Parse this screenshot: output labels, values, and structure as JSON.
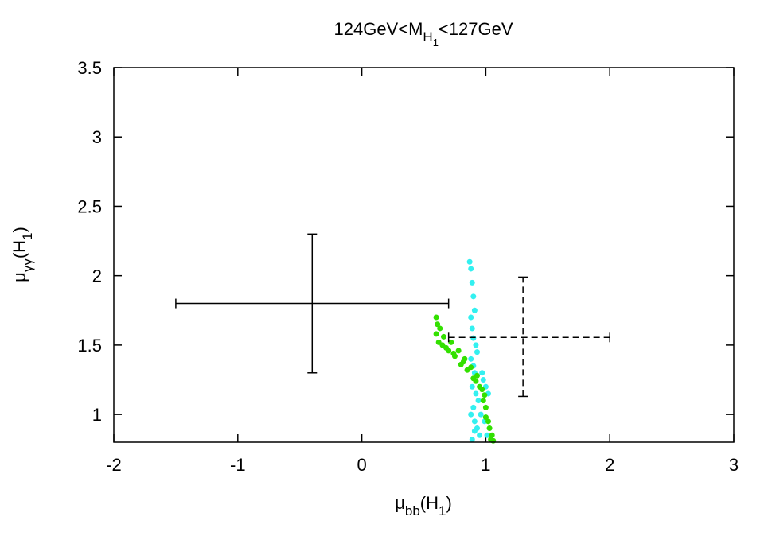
{
  "chart_data": {
    "type": "scatter",
    "title": [
      "124GeV<M",
      "H",
      "1",
      "<127GeV"
    ],
    "x_label": [
      "μ",
      "bb",
      "(H",
      "1",
      ")"
    ],
    "y_label": [
      "μ",
      "γγ",
      "(H",
      "1",
      ")"
    ],
    "xlim": [
      -2,
      3
    ],
    "ylim": [
      0.8,
      3.5
    ],
    "xticks": [
      -2,
      -1,
      0,
      1,
      2,
      3
    ],
    "yticks": [
      1,
      1.5,
      2,
      2.5,
      3,
      3.5
    ],
    "series": [
      {
        "color": "#33f0f0",
        "x": [
          0.87,
          0.88,
          0.89,
          0.9,
          0.91,
          0.88,
          0.89,
          0.9,
          0.92,
          0.93,
          0.88,
          0.9,
          0.91,
          0.89,
          0.92,
          0.94,
          0.9,
          0.88,
          0.91,
          0.93,
          0.95,
          0.97,
          0.98,
          1.0,
          1.02,
          0.96,
          0.99,
          1.01,
          0.89,
          0.91
        ],
        "values": [
          2.1,
          2.05,
          1.95,
          1.85,
          1.75,
          1.7,
          1.62,
          1.55,
          1.5,
          1.45,
          1.4,
          1.35,
          1.3,
          1.2,
          1.15,
          1.1,
          1.05,
          1.0,
          0.95,
          0.9,
          0.85,
          1.3,
          1.25,
          1.2,
          1.15,
          1.0,
          0.95,
          0.85,
          0.82,
          0.88
        ]
      },
      {
        "color": "#33e000",
        "x": [
          0.6,
          0.61,
          0.6,
          0.62,
          0.63,
          0.65,
          0.66,
          0.7,
          0.72,
          0.75,
          0.78,
          0.8,
          0.83,
          0.85,
          0.88,
          0.9,
          0.93,
          0.95,
          0.97,
          0.98,
          1.0,
          1.0,
          1.02,
          1.03,
          1.05,
          1.04,
          1.06,
          0.68,
          0.74,
          0.82,
          0.92,
          0.99
        ],
        "values": [
          1.7,
          1.65,
          1.58,
          1.52,
          1.62,
          1.5,
          1.56,
          1.46,
          1.52,
          1.42,
          1.46,
          1.36,
          1.4,
          1.32,
          1.34,
          1.26,
          1.28,
          1.2,
          1.18,
          1.1,
          1.05,
          0.98,
          0.95,
          0.9,
          0.85,
          0.82,
          0.81,
          1.48,
          1.44,
          1.38,
          1.24,
          1.14
        ]
      }
    ],
    "errorbars": [
      {
        "x": -0.4,
        "y": 1.8,
        "xmin": -1.5,
        "xmax": 0.7,
        "ymin": 1.3,
        "ymax": 2.3,
        "dashed": false
      },
      {
        "x": 1.3,
        "y": 1.555,
        "xmin": 0.7,
        "xmax": 2.0,
        "ymin": 1.13,
        "ymax": 1.99,
        "dashed": true
      }
    ]
  }
}
